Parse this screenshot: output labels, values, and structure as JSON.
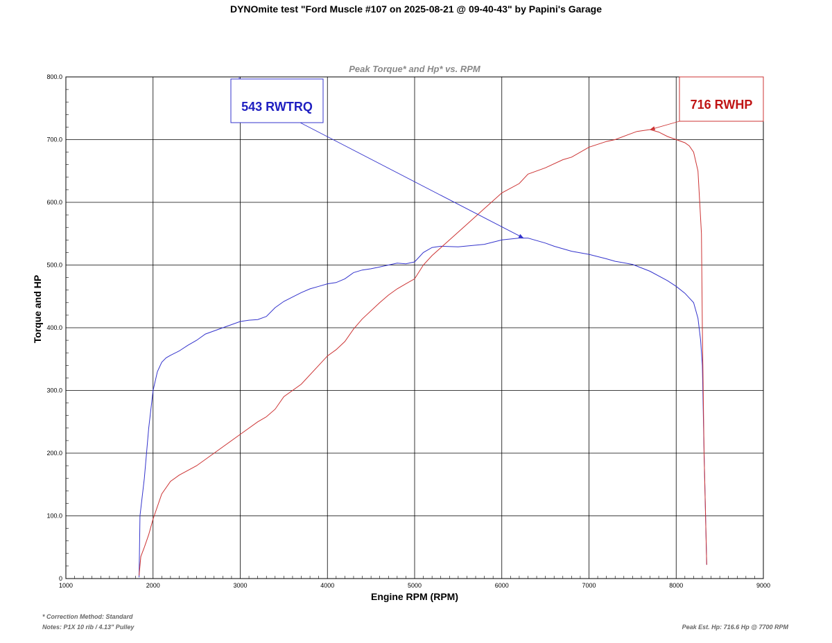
{
  "page_title": "DYNOmite test \"Ford Muscle #107 on 2025-08-21 @ 09-40-43\" by Papini's Garage",
  "footer": {
    "correction": "* Correction Method: Standard",
    "notes": "Notes: P1X 10 rib / 4.13\" Pulley",
    "peak": "Peak Est. Hp: 716.6 Hp @ 7700 RPM"
  },
  "colors": {
    "torque": "#3333cc",
    "hp": "#cc3333",
    "torque_label": "#1f1fc0",
    "hp_label": "#c01515"
  },
  "chart_data": {
    "type": "line",
    "title": "Peak Torque* and Hp* vs. RPM",
    "xlabel": "Engine RPM (RPM)",
    "ylabel": "Torque and HP",
    "xlim": [
      1000,
      9000
    ],
    "ylim": [
      0,
      800
    ],
    "x_ticks": [
      1000,
      2000,
      3000,
      4000,
      5000,
      6000,
      7000,
      8000,
      9000
    ],
    "y_ticks": [
      0,
      100,
      200,
      300,
      400,
      500,
      600,
      700,
      800
    ],
    "y_tick_labels": [
      "0",
      "100.0",
      "200.0",
      "300.0",
      "400.0",
      "500.0",
      "600.0",
      "700.0",
      "800.0"
    ],
    "grid": true,
    "series": [
      {
        "key": "torque",
        "x": [
          1840,
          1850,
          1900,
          1950,
          2000,
          2050,
          2100,
          2150,
          2200,
          2300,
          2400,
          2500,
          2600,
          2800,
          3000,
          3100,
          3200,
          3300,
          3400,
          3500,
          3600,
          3700,
          3800,
          3900,
          4000,
          4100,
          4200,
          4300,
          4400,
          4500,
          4600,
          4700,
          4800,
          4900,
          5000,
          5100,
          5200,
          5300,
          5500,
          5800,
          6000,
          6200,
          6300,
          6500,
          6600,
          6800,
          7000,
          7200,
          7300,
          7500,
          7700,
          7900,
          8000,
          8100,
          8200,
          8250,
          8280,
          8300,
          8320,
          8350
        ],
        "values": [
          2,
          100,
          160,
          240,
          300,
          330,
          345,
          352,
          356,
          363,
          372,
          380,
          390,
          400,
          410,
          412,
          413,
          418,
          432,
          442,
          449,
          456,
          462,
          466,
          470,
          472,
          478,
          488,
          492,
          494,
          497,
          500,
          503,
          502,
          505,
          520,
          528,
          530,
          529,
          533,
          540,
          543,
          543,
          535,
          530,
          522,
          517,
          510,
          506,
          501,
          490,
          475,
          466,
          455,
          440,
          415,
          380,
          340,
          200,
          22
        ]
      },
      {
        "key": "hp",
        "x": [
          1840,
          1860,
          1900,
          1950,
          2000,
          2100,
          2200,
          2300,
          2500,
          2700,
          3000,
          3200,
          3300,
          3400,
          3500,
          3700,
          3900,
          4000,
          4100,
          4200,
          4300,
          4400,
          4600,
          4700,
          4800,
          4900,
          5000,
          5100,
          5200,
          5400,
          5600,
          5800,
          6000,
          6200,
          6300,
          6500,
          6700,
          6800,
          7000,
          7200,
          7300,
          7450,
          7550,
          7700,
          7800,
          7900,
          8000,
          8100,
          8150,
          8200,
          8250,
          8270,
          8290,
          8300,
          8320,
          8350
        ],
        "values": [
          5,
          35,
          50,
          70,
          95,
          135,
          155,
          165,
          180,
          200,
          230,
          250,
          258,
          270,
          290,
          310,
          340,
          355,
          365,
          378,
          398,
          414,
          440,
          452,
          462,
          470,
          478,
          500,
          515,
          540,
          565,
          590,
          615,
          630,
          645,
          655,
          668,
          672,
          688,
          697,
          700,
          708,
          713,
          716,
          712,
          705,
          700,
          695,
          690,
          680,
          650,
          600,
          550,
          400,
          200,
          22
        ]
      }
    ],
    "annotations": [
      {
        "text": "543 RWTRQ",
        "series": "torque",
        "x": 6250,
        "y": 543
      },
      {
        "text": "716 RWHP",
        "series": "hp",
        "x": 7700,
        "y": 716
      }
    ]
  }
}
